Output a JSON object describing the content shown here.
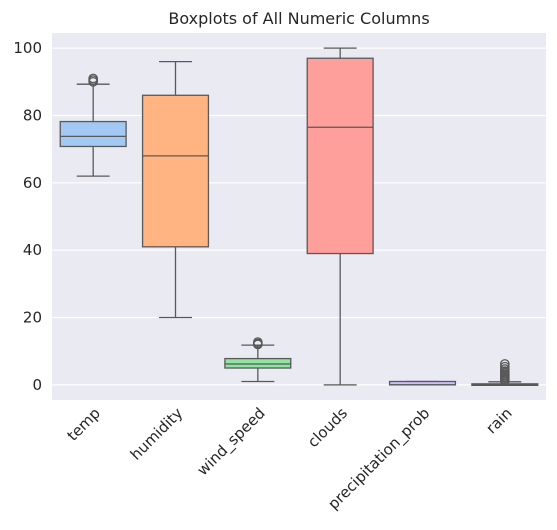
{
  "chart_data": {
    "type": "boxplot",
    "title": "Boxplots of All Numeric Columns",
    "xlabel": "",
    "ylabel": "",
    "ylim": [
      -4.5,
      104.5
    ],
    "yticks": [
      0,
      20,
      40,
      60,
      80,
      100
    ],
    "grid": true,
    "categories": [
      "temp",
      "humidity",
      "wind_speed",
      "clouds",
      "precipitation_prob",
      "rain"
    ],
    "boxes": [
      {
        "name": "temp",
        "whisker_low": 62,
        "q1": 70.8,
        "median": 73.8,
        "q3": 78.2,
        "whisker_high": 89.3,
        "outliers": [
          90,
          90.5,
          91
        ],
        "color": "#a1c9f4"
      },
      {
        "name": "humidity",
        "whisker_low": 20,
        "q1": 41,
        "median": 68,
        "q3": 86,
        "whisker_high": 96,
        "outliers": [],
        "color": "#ffb482"
      },
      {
        "name": "wind_speed",
        "whisker_low": 1,
        "q1": 5,
        "median": 6.2,
        "q3": 7.8,
        "whisker_high": 11.8,
        "outliers": [
          12.0,
          12.3,
          12.7
        ],
        "color": "#8de5a1"
      },
      {
        "name": "clouds",
        "whisker_low": 0,
        "q1": 39,
        "median": 76.5,
        "q3": 97,
        "whisker_high": 100,
        "outliers": [],
        "color": "#ff9f9b"
      },
      {
        "name": "precipitation_prob",
        "whisker_low": 0,
        "q1": 0,
        "median": 0,
        "q3": 1,
        "whisker_high": 1,
        "outliers": [],
        "color": "#d0bbff"
      },
      {
        "name": "rain",
        "whisker_low": 0,
        "q1": 0,
        "median": 0,
        "q3": 0.3,
        "whisker_high": 0.9,
        "outliers": [
          1.2,
          1.6,
          2.0,
          2.4,
          2.8,
          3.2,
          3.6,
          4.1,
          4.7,
          5.4,
          6.2
        ],
        "color": "#debb9b"
      }
    ],
    "colors": {
      "background": "#eaeaf2",
      "grid": "#ffffff",
      "line": "#595959",
      "text": "#262626"
    }
  }
}
